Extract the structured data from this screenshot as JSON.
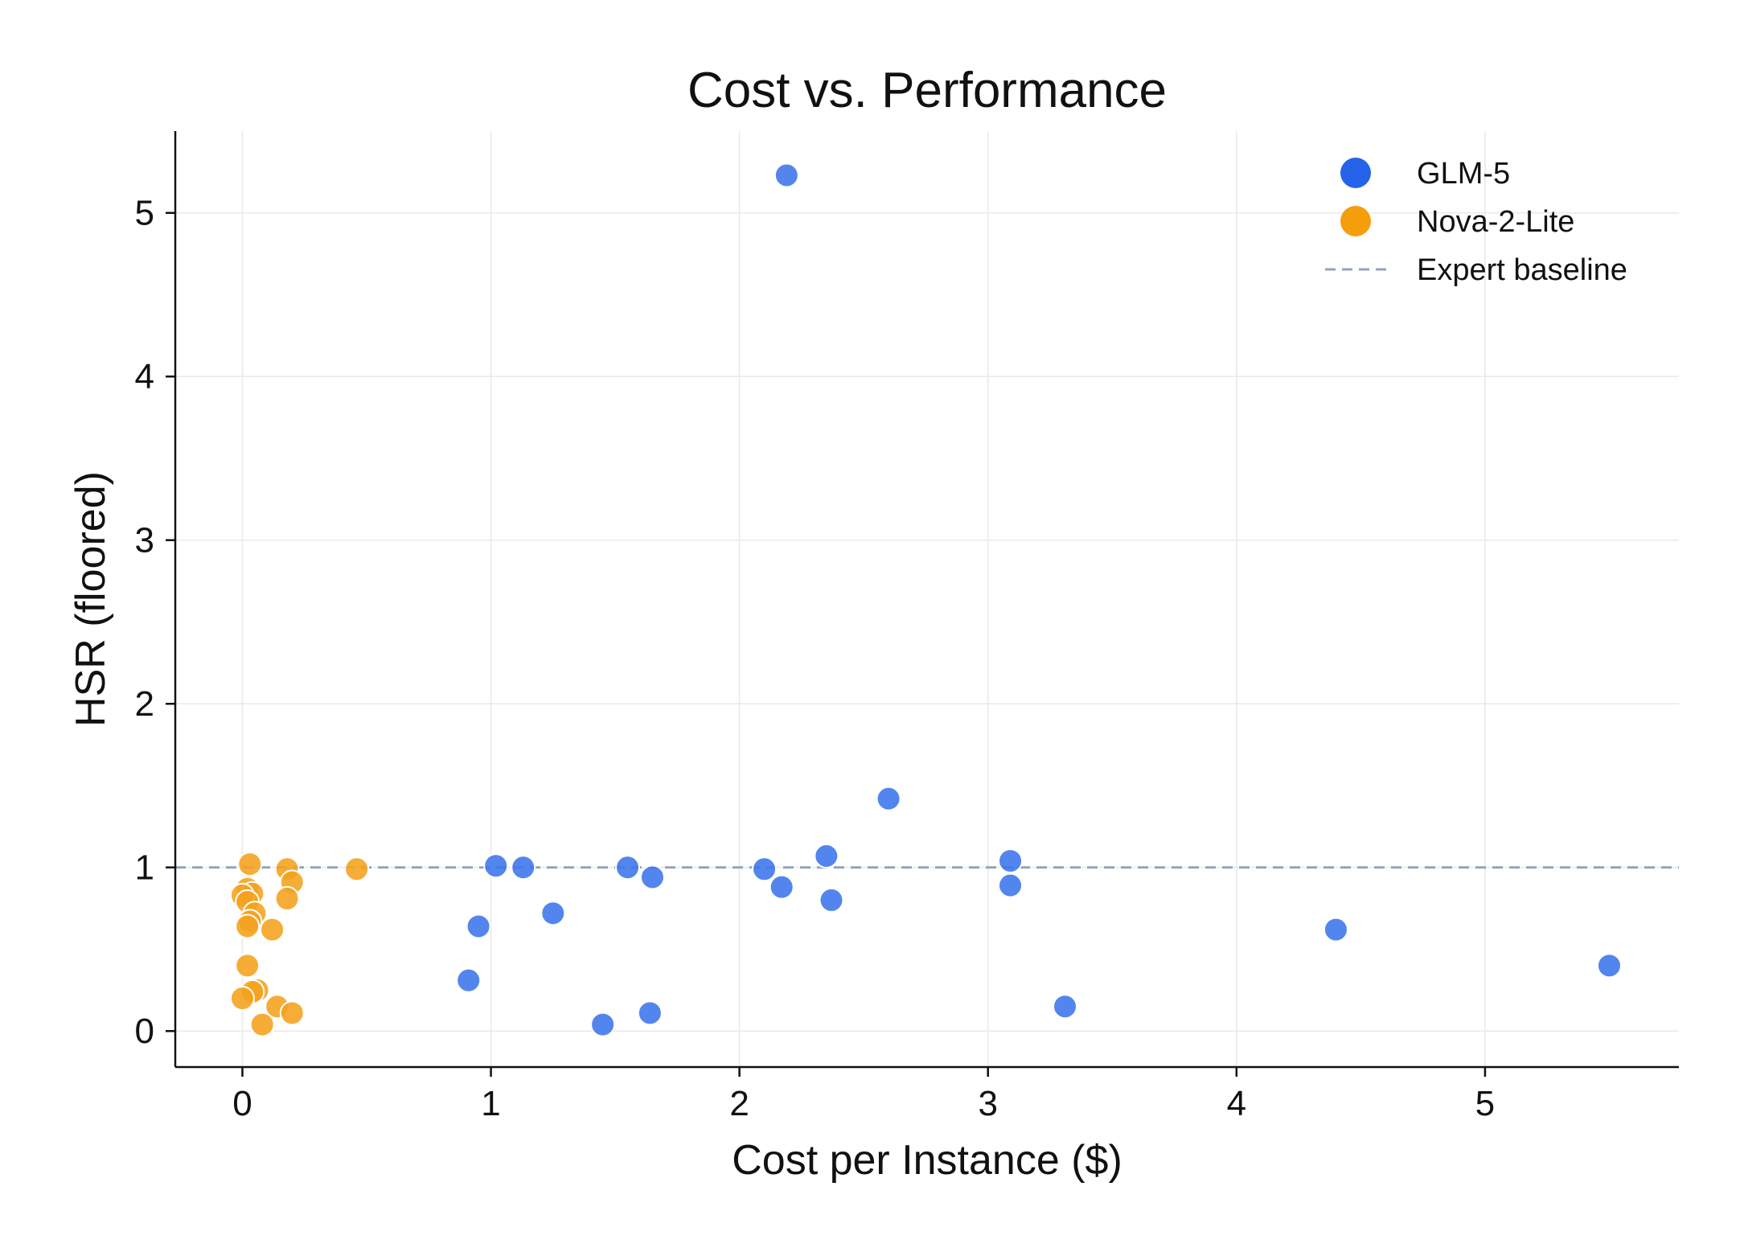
{
  "chart_data": {
    "type": "scatter",
    "title": "Cost vs. Performance",
    "xlabel": "Cost per Instance ($)",
    "ylabel": "HSR (floored)",
    "xlim": [
      -0.27,
      5.78
    ],
    "ylim": [
      -0.22,
      5.5
    ],
    "xticks": [
      0,
      1,
      2,
      3,
      4,
      5
    ],
    "yticks": [
      0,
      1,
      2,
      3,
      4,
      5
    ],
    "grid": true,
    "legend_position": "top-right",
    "baseline": {
      "name": "Expert baseline",
      "y": 1.0,
      "color": "#94a3b8"
    },
    "series": [
      {
        "name": "GLM-5",
        "color": "#3b74ec",
        "legend_color": "#2563eb",
        "points": [
          [
            2.19,
            5.23
          ],
          [
            2.6,
            1.42
          ],
          [
            2.35,
            1.07
          ],
          [
            3.09,
            1.04
          ],
          [
            1.02,
            1.01
          ],
          [
            1.13,
            1.0
          ],
          [
            1.55,
            1.0
          ],
          [
            1.65,
            0.94
          ],
          [
            2.1,
            0.99
          ],
          [
            2.17,
            0.88
          ],
          [
            3.09,
            0.89
          ],
          [
            2.37,
            0.8
          ],
          [
            1.25,
            0.72
          ],
          [
            0.95,
            0.64
          ],
          [
            4.4,
            0.62
          ],
          [
            5.5,
            0.4
          ],
          [
            0.91,
            0.31
          ],
          [
            3.31,
            0.15
          ],
          [
            1.64,
            0.11
          ],
          [
            1.45,
            0.04
          ]
        ]
      },
      {
        "name": "Nova-2-Lite",
        "color": "#f4a21c",
        "legend_color": "#f59e0b",
        "points": [
          [
            0.03,
            1.02
          ],
          [
            0.18,
            0.99
          ],
          [
            0.46,
            0.99
          ],
          [
            0.02,
            0.87
          ],
          [
            0.04,
            0.84
          ],
          [
            0.2,
            0.91
          ],
          [
            0.18,
            0.81
          ],
          [
            0.0,
            0.83
          ],
          [
            0.02,
            0.79
          ],
          [
            0.05,
            0.72
          ],
          [
            0.03,
            0.67
          ],
          [
            0.02,
            0.64
          ],
          [
            0.12,
            0.62
          ],
          [
            0.02,
            0.4
          ],
          [
            0.06,
            0.25
          ],
          [
            0.04,
            0.24
          ],
          [
            0.0,
            0.2
          ],
          [
            0.14,
            0.15
          ],
          [
            0.2,
            0.11
          ],
          [
            0.08,
            0.04
          ]
        ]
      }
    ]
  }
}
